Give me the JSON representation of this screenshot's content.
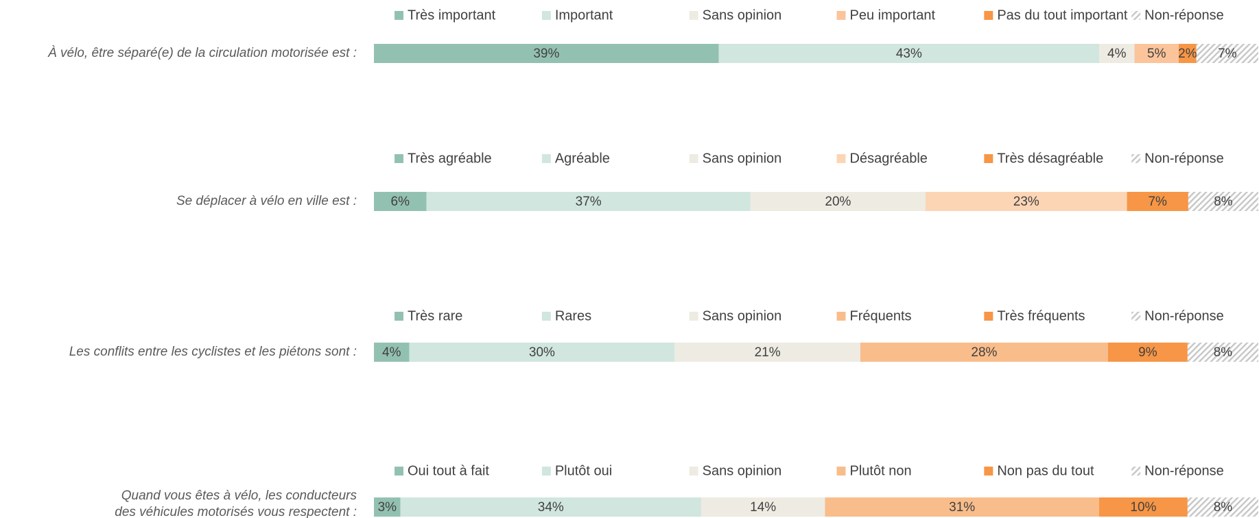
{
  "chart_data": [
    {
      "type": "stacked-bar",
      "question": [
        "À vélo, être séparé(e) de la circulation motorisée est :"
      ],
      "series": [
        {
          "name": "Très important",
          "color": "#93c1b1",
          "values": [
            39
          ],
          "value_labels": [
            "39%"
          ]
        },
        {
          "name": "Important",
          "color": "#d0e6df",
          "values": [
            43
          ],
          "value_labels": [
            "43%"
          ]
        },
        {
          "name": "Sans opinion",
          "color": "#eeebe2",
          "values": [
            4
          ],
          "value_labels": [
            "4%"
          ]
        },
        {
          "name": "Peu important",
          "color": "#fbc49b",
          "values": [
            5
          ],
          "value_labels": [
            "5%"
          ]
        },
        {
          "name": "Pas du tout important",
          "color": "#f79646",
          "values": [
            2
          ],
          "value_labels": [
            "2%"
          ]
        },
        {
          "name": "Non-réponse",
          "color": "hatch",
          "values": [
            7
          ],
          "value_labels": [
            "7%"
          ]
        }
      ]
    },
    {
      "type": "stacked-bar",
      "question": [
        "Se déplacer à vélo en ville est :"
      ],
      "series": [
        {
          "name": "Très agréable",
          "color": "#93c1b1",
          "values": [
            6
          ],
          "value_labels": [
            "6%"
          ]
        },
        {
          "name": "Agréable",
          "color": "#d0e6df",
          "values": [
            37
          ],
          "value_labels": [
            "37%"
          ]
        },
        {
          "name": "Sans opinion",
          "color": "#eeebe2",
          "values": [
            20
          ],
          "value_labels": [
            "20%"
          ]
        },
        {
          "name": "Désagréable",
          "color": "#fcd5b5",
          "values": [
            23
          ],
          "value_labels": [
            "23%"
          ]
        },
        {
          "name": "Très désagréable",
          "color": "#f79646",
          "values": [
            7
          ],
          "value_labels": [
            "7%"
          ]
        },
        {
          "name": "Non-réponse",
          "color": "hatch",
          "values": [
            8
          ],
          "value_labels": [
            "8%"
          ]
        }
      ]
    },
    {
      "type": "stacked-bar",
      "question": [
        "Les conflits entre les cyclistes et les piétons sont :"
      ],
      "series": [
        {
          "name": "Très rare",
          "color": "#93c1b1",
          "values": [
            4
          ],
          "value_labels": [
            "4%"
          ]
        },
        {
          "name": "Rares",
          "color": "#d0e6df",
          "values": [
            30
          ],
          "value_labels": [
            "30%"
          ]
        },
        {
          "name": "Sans opinion",
          "color": "#eeebe2",
          "values": [
            21
          ],
          "value_labels": [
            "21%"
          ]
        },
        {
          "name": "Fréquents",
          "color": "#f9bd8b",
          "values": [
            28
          ],
          "value_labels": [
            "28%"
          ]
        },
        {
          "name": "Très fréquents",
          "color": "#f79646",
          "values": [
            9
          ],
          "value_labels": [
            "9%"
          ]
        },
        {
          "name": "Non-réponse",
          "color": "hatch",
          "values": [
            8
          ],
          "value_labels": [
            "8%"
          ]
        }
      ]
    },
    {
      "type": "stacked-bar",
      "question": [
        "Quand vous êtes à vélo, les conducteurs",
        "des véhicules motorisés vous respectent :"
      ],
      "series": [
        {
          "name": "Oui tout à fait",
          "color": "#93c1b1",
          "values": [
            3
          ],
          "value_labels": [
            "3%"
          ]
        },
        {
          "name": "Plutôt oui",
          "color": "#d0e6df",
          "values": [
            34
          ],
          "value_labels": [
            "34%"
          ]
        },
        {
          "name": "Sans opinion",
          "color": "#eeebe2",
          "values": [
            14
          ],
          "value_labels": [
            "14%"
          ]
        },
        {
          "name": "Plutôt non",
          "color": "#f9bd8b",
          "values": [
            31
          ],
          "value_labels": [
            "31%"
          ]
        },
        {
          "name": "Non pas du tout",
          "color": "#f79646",
          "values": [
            10
          ],
          "value_labels": [
            "10%"
          ]
        },
        {
          "name": "Non-réponse",
          "color": "hatch",
          "values": [
            8
          ],
          "value_labels": [
            "8%"
          ]
        }
      ]
    }
  ]
}
